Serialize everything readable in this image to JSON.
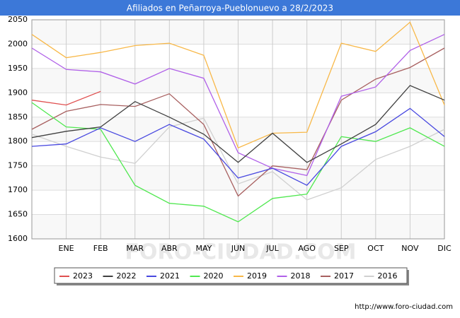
{
  "chart_data": {
    "type": "line",
    "title": "Afiliados en Peñarroya-Pueblonuevo a 28/2/2023",
    "categories": [
      null,
      "ENE",
      "FEB",
      "MAR",
      "ABR",
      "MAY",
      "JUN",
      "JUL",
      "AGO",
      "SEP",
      "OCT",
      "NOV",
      "DIC"
    ],
    "series": [
      {
        "name": "2023",
        "color": "#e05050",
        "values": [
          1885,
          1875,
          1903,
          null,
          null,
          null,
          null,
          null,
          null,
          null,
          null,
          null,
          null
        ]
      },
      {
        "name": "2022",
        "color": "#404040",
        "values": [
          1808,
          1821,
          1830,
          1882,
          1850,
          1815,
          1757,
          1817,
          1757,
          1795,
          1835,
          1915,
          1885
        ]
      },
      {
        "name": "2021",
        "color": "#4848e0",
        "values": [
          1790,
          1795,
          1828,
          1800,
          1835,
          1805,
          1725,
          1745,
          1710,
          1790,
          1820,
          1868,
          1810
        ]
      },
      {
        "name": "2020",
        "color": "#50e850",
        "values": [
          1880,
          1830,
          1825,
          1710,
          1673,
          1667,
          1635,
          1683,
          1692,
          1810,
          1800,
          1828,
          1790
        ]
      },
      {
        "name": "2019",
        "color": "#f8b848",
        "values": [
          2020,
          1972,
          1983,
          1997,
          2002,
          1977,
          1787,
          1817,
          1819,
          2002,
          1985,
          2045,
          1875
        ]
      },
      {
        "name": "2018",
        "color": "#b060e8",
        "values": [
          1992,
          1948,
          1943,
          1918,
          1950,
          1930,
          1777,
          1745,
          1730,
          1893,
          1912,
          1987,
          2020
        ]
      },
      {
        "name": "2017",
        "color": "#a86060",
        "values": [
          1825,
          1862,
          1876,
          1872,
          1898,
          1835,
          1688,
          1750,
          1742,
          1885,
          1928,
          1952,
          1992
        ]
      },
      {
        "name": "2016",
        "color": "#d0d0d0",
        "values": [
          1815,
          1790,
          1768,
          1755,
          1830,
          1848,
          1713,
          1738,
          1680,
          1705,
          1763,
          1790,
          1825
        ]
      }
    ],
    "ylim": [
      1600,
      2050
    ],
    "yticks": [
      1600,
      1650,
      1700,
      1750,
      1800,
      1850,
      1900,
      1950,
      2000,
      2050
    ],
    "grid": true,
    "legend": "bottom",
    "watermark": "FORO-CIUDAD.COM",
    "source": "http://www.foro-ciudad.com"
  }
}
